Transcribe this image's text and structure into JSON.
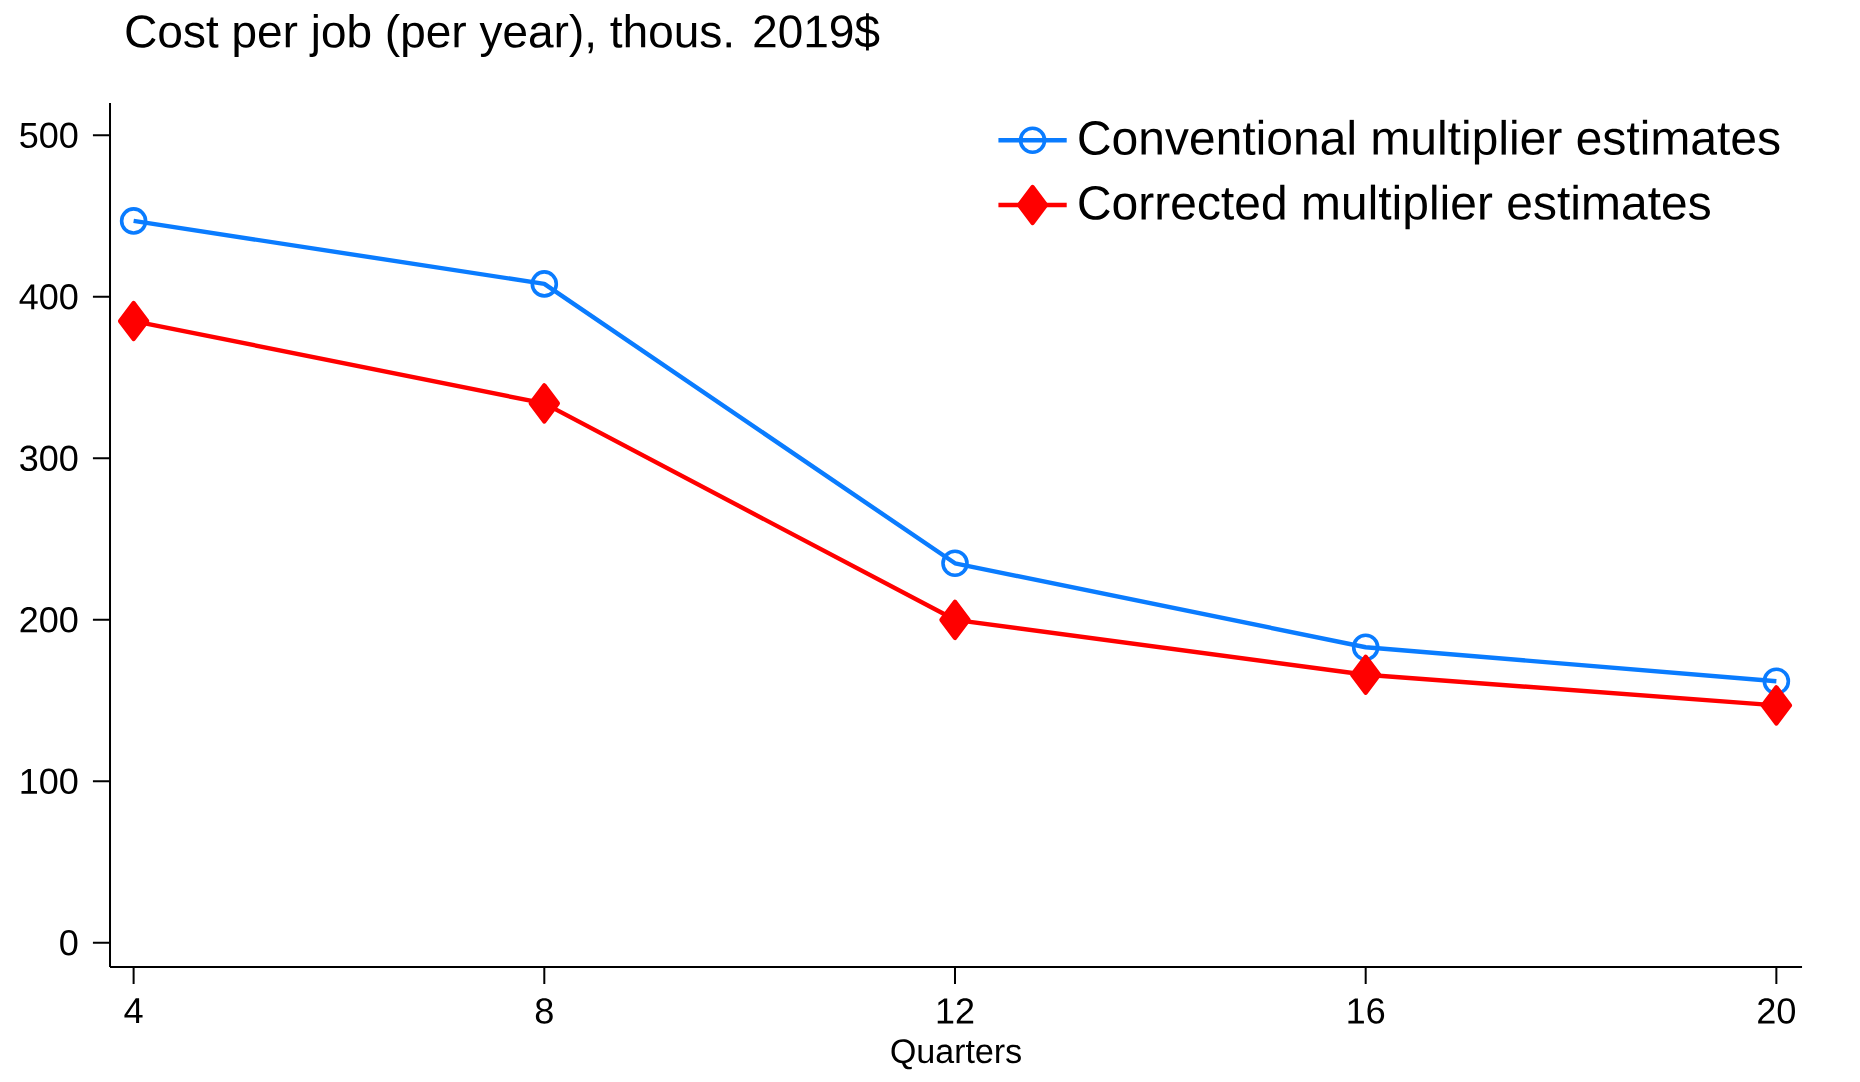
{
  "chart_data": {
    "type": "line",
    "title": "Cost per job (per year), thous. 2019$",
    "xlabel": "Quarters",
    "x": [
      4,
      8,
      12,
      16,
      20
    ],
    "series": [
      {
        "name": "Conventional multiplier estimates",
        "color": "#0a7cff",
        "marker": "circle",
        "values": [
          447,
          408,
          235,
          183,
          162
        ]
      },
      {
        "name": "Corrected multiplier estimates",
        "color": "#ff0000",
        "marker": "diamond",
        "values": [
          385,
          334,
          200,
          166,
          147
        ]
      }
    ],
    "xlim": [
      3.77,
      20.25
    ],
    "ylim": [
      -15,
      520
    ],
    "xticks": [
      4,
      8,
      12,
      16,
      20
    ],
    "yticks": [
      0,
      100,
      200,
      300,
      400,
      500
    ],
    "grid": false,
    "legend": "top right",
    "line_style": "solid"
  }
}
